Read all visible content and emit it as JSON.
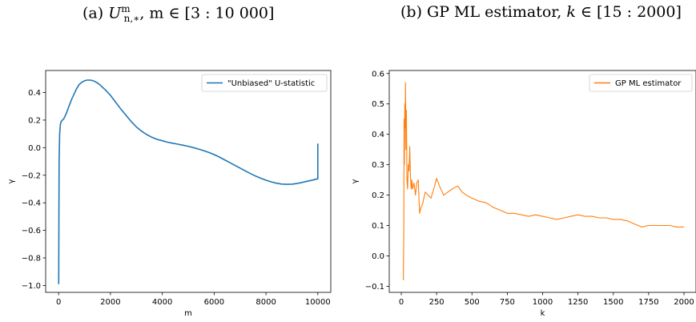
{
  "captions": {
    "a": {
      "prefix": "(a)",
      "symbol": "U",
      "sup": "m",
      "sub": "n,∗",
      "rest": ", m ∈ [3 : 10 000]"
    },
    "b": {
      "prefix": "(b)",
      "text": "GP ML estimator, ",
      "var": "k",
      "rest": " ∈ [15 : 2000]"
    }
  },
  "chart_data": [
    {
      "type": "line",
      "xlabel": "m",
      "ylabel": "γ",
      "xlim": [
        -500,
        10500
      ],
      "ylim": [
        -1.05,
        0.56
      ],
      "xticks": [
        0,
        2000,
        4000,
        6000,
        8000,
        10000
      ],
      "yticks": [
        -1.0,
        -0.8,
        -0.6,
        -0.4,
        -0.2,
        0.0,
        0.2,
        0.4
      ],
      "ytick_labels": [
        "−1.0",
        "−0.8",
        "−0.6",
        "−0.4",
        "−0.2",
        "0.0",
        "0.2",
        "0.4"
      ],
      "grid": false,
      "legend": "top-right",
      "series": [
        {
          "name": "\"Unbiased\" U-statistic",
          "color": "#1f77b4",
          "x": [
            3,
            10,
            20,
            40,
            70,
            100,
            150,
            200,
            300,
            400,
            500,
            600,
            700,
            800,
            900,
            1000,
            1100,
            1200,
            1300,
            1400,
            1500,
            1600,
            1800,
            2000,
            2200,
            2400,
            2600,
            2800,
            3000,
            3200,
            3400,
            3600,
            3800,
            4000,
            4200,
            4400,
            4600,
            4800,
            5000,
            5200,
            5400,
            5600,
            5800,
            6000,
            6200,
            6400,
            6600,
            6800,
            7000,
            7200,
            7400,
            7600,
            7800,
            8000,
            8200,
            8400,
            8600,
            8800,
            9000,
            9200,
            9400,
            9600,
            9800,
            10000,
            10000
          ],
          "values": [
            -0.99,
            -0.6,
            -0.1,
            0.1,
            0.17,
            0.19,
            0.2,
            0.21,
            0.25,
            0.3,
            0.35,
            0.39,
            0.43,
            0.46,
            0.475,
            0.485,
            0.49,
            0.49,
            0.488,
            0.48,
            0.47,
            0.455,
            0.42,
            0.38,
            0.33,
            0.28,
            0.235,
            0.19,
            0.15,
            0.12,
            0.095,
            0.075,
            0.06,
            0.05,
            0.04,
            0.032,
            0.025,
            0.018,
            0.01,
            0.0,
            -0.01,
            -0.022,
            -0.035,
            -0.05,
            -0.068,
            -0.088,
            -0.108,
            -0.128,
            -0.148,
            -0.168,
            -0.188,
            -0.206,
            -0.222,
            -0.236,
            -0.248,
            -0.258,
            -0.264,
            -0.266,
            -0.265,
            -0.26,
            -0.252,
            -0.243,
            -0.235,
            -0.226,
            0.03
          ]
        }
      ]
    },
    {
      "type": "line",
      "xlabel": "k",
      "ylabel": "γ",
      "xlim": [
        -85,
        2085
      ],
      "ylim": [
        -0.12,
        0.61
      ],
      "xticks": [
        0,
        250,
        500,
        750,
        1000,
        1250,
        1500,
        1750,
        2000
      ],
      "yticks": [
        -0.1,
        0.0,
        0.1,
        0.2,
        0.3,
        0.4,
        0.5,
        0.6
      ],
      "ytick_labels": [
        "−0.1",
        "0.0",
        "0.1",
        "0.2",
        "0.3",
        "0.4",
        "0.5",
        "0.6"
      ],
      "grid": false,
      "legend": "top-right",
      "series": [
        {
          "name": "GP ML estimator",
          "color": "#ff7f0e",
          "x": [
            15,
            18,
            20,
            22,
            25,
            28,
            30,
            33,
            36,
            40,
            45,
            50,
            55,
            60,
            65,
            70,
            75,
            80,
            90,
            100,
            110,
            120,
            130,
            140,
            150,
            170,
            190,
            210,
            230,
            250,
            270,
            300,
            330,
            360,
            400,
            430,
            460,
            500,
            550,
            600,
            650,
            700,
            750,
            800,
            850,
            900,
            950,
            1000,
            1050,
            1100,
            1150,
            1200,
            1250,
            1300,
            1350,
            1400,
            1450,
            1500,
            1550,
            1600,
            1650,
            1700,
            1750,
            1800,
            1850,
            1900,
            1950,
            2000
          ],
          "values": [
            -0.08,
            0.1,
            0.45,
            0.3,
            0.5,
            0.42,
            0.57,
            0.35,
            0.48,
            0.25,
            0.22,
            0.3,
            0.28,
            0.36,
            0.26,
            0.22,
            0.25,
            0.22,
            0.24,
            0.2,
            0.24,
            0.25,
            0.14,
            0.16,
            0.17,
            0.21,
            0.2,
            0.19,
            0.22,
            0.255,
            0.23,
            0.2,
            0.21,
            0.22,
            0.23,
            0.21,
            0.2,
            0.19,
            0.18,
            0.175,
            0.16,
            0.15,
            0.14,
            0.14,
            0.135,
            0.13,
            0.135,
            0.13,
            0.125,
            0.12,
            0.125,
            0.13,
            0.135,
            0.13,
            0.13,
            0.125,
            0.125,
            0.12,
            0.12,
            0.115,
            0.105,
            0.095,
            0.1,
            0.1,
            0.1,
            0.1,
            0.095,
            0.095
          ]
        }
      ]
    }
  ]
}
